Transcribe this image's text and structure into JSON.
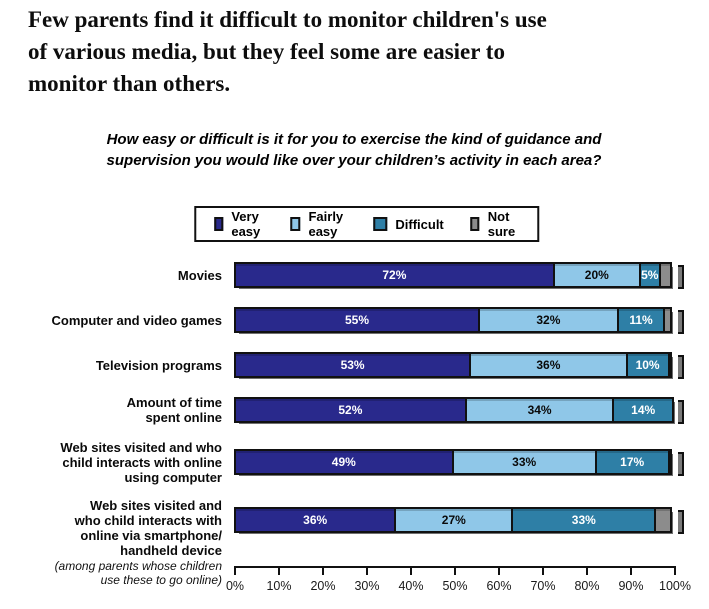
{
  "title_lines": [
    "Few parents find it difficult to monitor children's use",
    "of various media, but they feel some are easier to",
    "monitor than others."
  ],
  "subtitle_lines": [
    "How easy or difficult is it for you to exercise the kind of guidance and",
    "supervision you would like over your children’s activity in each area?"
  ],
  "chart_data": {
    "type": "bar",
    "stacked": true,
    "orientation": "horizontal",
    "legend_position": "top",
    "grid": false,
    "series_meta": [
      {
        "name": "Very easy",
        "color": "#29298C",
        "text_color": "#ffffff"
      },
      {
        "name": "Fairly easy",
        "color": "#8FC7E8",
        "text_color": "#0a0a0a"
      },
      {
        "name": "Difficult",
        "color": "#2E7FA6",
        "text_color": "#ffffff"
      },
      {
        "name": "Not sure",
        "color": "#8C8C8C",
        "text_color": "#ffffff"
      }
    ],
    "categories": [
      {
        "label_lines": [
          "Movies"
        ],
        "note_lines": [],
        "values": [
          72,
          20,
          5,
          3
        ],
        "value_labels": [
          "72%",
          "20%",
          "5%",
          ""
        ]
      },
      {
        "label_lines": [
          "Computer and video games"
        ],
        "note_lines": [],
        "values": [
          55,
          32,
          11,
          2
        ],
        "value_labels": [
          "55%",
          "32%",
          "11%",
          ""
        ]
      },
      {
        "label_lines": [
          "Television programs"
        ],
        "note_lines": [],
        "values": [
          53,
          36,
          10,
          1
        ],
        "value_labels": [
          "53%",
          "36%",
          "10%",
          ""
        ]
      },
      {
        "label_lines": [
          "Amount of time",
          "spent online"
        ],
        "note_lines": [],
        "values": [
          52,
          34,
          14,
          0
        ],
        "value_labels": [
          "52%",
          "34%",
          "14%",
          ""
        ]
      },
      {
        "label_lines": [
          "Web sites visited and who",
          "child interacts with online",
          "using computer"
        ],
        "note_lines": [],
        "values": [
          49,
          33,
          17,
          1
        ],
        "value_labels": [
          "49%",
          "33%",
          "17%",
          ""
        ]
      },
      {
        "label_lines": [
          "Web sites visited and",
          "who child interacts with",
          "online via smartphone/",
          "handheld device"
        ],
        "note_lines": [
          "(among parents whose children",
          "use these to go online)"
        ],
        "values": [
          36,
          27,
          33,
          4
        ],
        "value_labels": [
          "36%",
          "27%",
          "33%",
          ""
        ]
      }
    ],
    "x_axis": {
      "range": [
        0,
        100
      ],
      "tick_labels": [
        "0%",
        "10%",
        "20%",
        "30%",
        "40%",
        "50%",
        "60%",
        "70%",
        "80%",
        "90%",
        "100%"
      ]
    }
  }
}
